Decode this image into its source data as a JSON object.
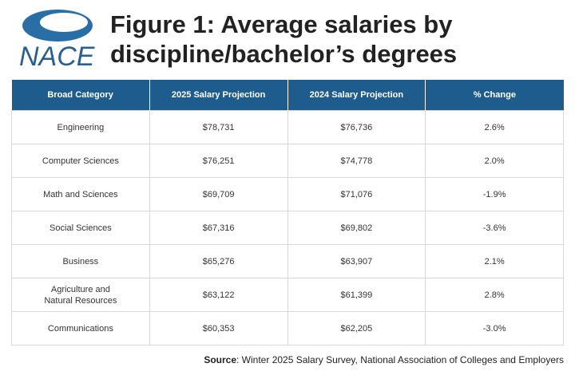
{
  "header": {
    "logo": "NACE",
    "title_lines": [
      "Figure 1: Average salaries by",
      "discipline/bachelor’s degrees"
    ]
  },
  "table": {
    "columns": [
      "Broad Category",
      "2025 Salary Projection",
      "2024 Salary Projection",
      "% Change"
    ],
    "rows": [
      [
        "Engineering",
        "$78,731",
        "$76,736",
        "2.6%"
      ],
      [
        "Computer Sciences",
        "$76,251",
        "$74,778",
        "2.0%"
      ],
      [
        "Math and Sciences",
        "$69,709",
        "$71,076",
        "-1.9%"
      ],
      [
        "Social Sciences",
        "$67,316",
        "$69,802",
        "-3.6%"
      ],
      [
        "Business",
        "$65,276",
        "$63,907",
        "2.1%"
      ],
      [
        "Agriculture and Natural Resources",
        "$63,122",
        "$61,399",
        "2.8%"
      ],
      [
        "Communications",
        "$60,353",
        "$62,205",
        "-3.0%"
      ]
    ]
  },
  "source": {
    "label": "Source",
    "text": ": Winter 2025 Salary Survey, National Association of Colleges and Employers"
  }
}
